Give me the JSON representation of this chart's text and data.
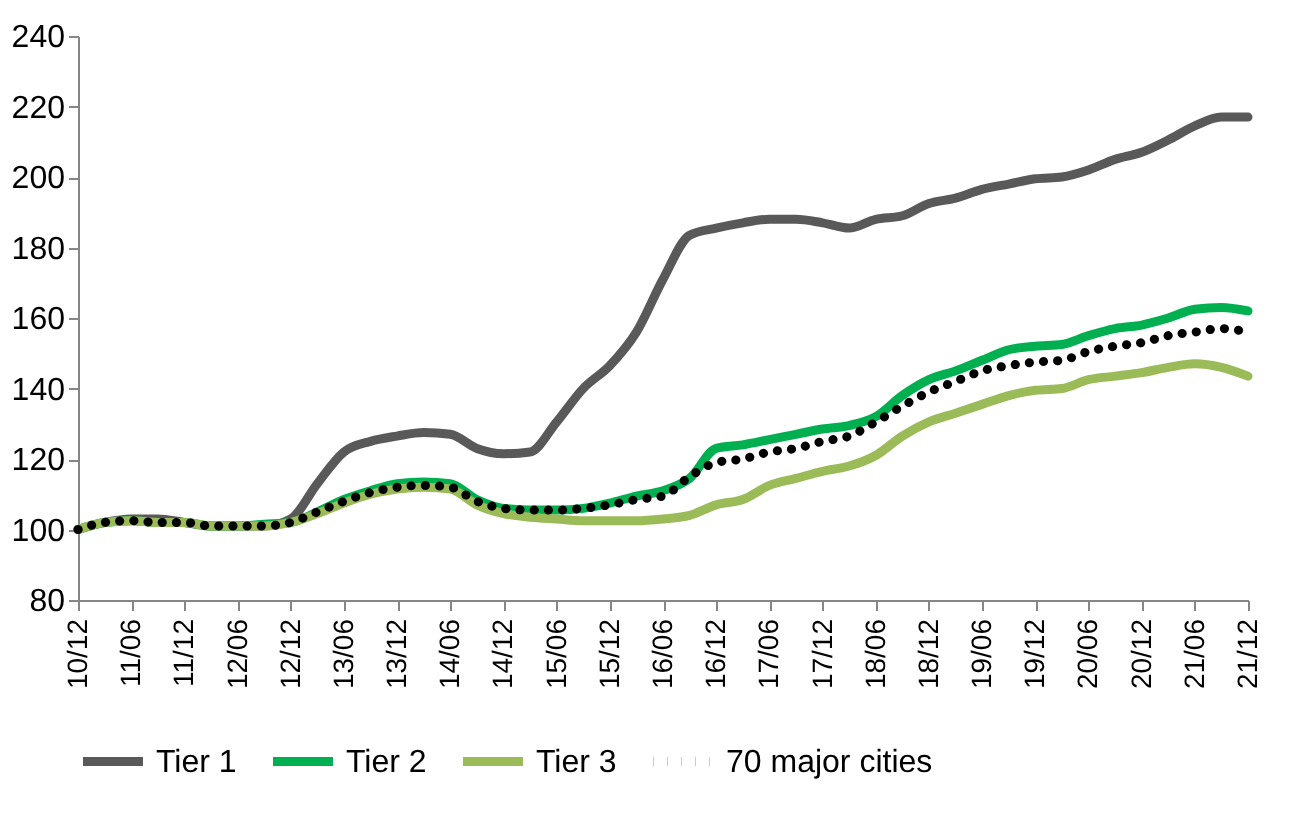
{
  "chart_data": {
    "type": "line",
    "categories": [
      "10/12",
      null,
      "11/06",
      null,
      "11/12",
      null,
      "12/06",
      null,
      "12/12",
      null,
      "13/06",
      null,
      "13/12",
      null,
      "14/06",
      null,
      "14/12",
      null,
      "15/06",
      null,
      "15/12",
      null,
      "16/06",
      null,
      "16/12",
      null,
      "17/06",
      null,
      "17/12",
      null,
      "18/06",
      null,
      "18/12",
      null,
      "19/06",
      null,
      "19/12",
      null,
      "20/06",
      null,
      "20/12",
      null,
      "21/06",
      null,
      "21/12"
    ],
    "series": [
      {
        "name": "Tier 1",
        "color": "#595959",
        "line_style": "solid",
        "values": [
          100,
          102,
          103,
          103,
          102,
          101,
          101,
          101,
          103,
          113,
          122,
          125,
          126.5,
          127.5,
          127,
          123,
          121.5,
          122,
          130.5,
          140,
          146.5,
          156,
          171,
          183.5,
          185.5,
          187,
          188,
          188,
          187,
          185.5,
          188,
          189,
          192.5,
          194,
          196.5,
          198,
          199.5,
          200,
          202,
          205,
          207,
          210.5,
          214.5,
          217,
          217
        ]
      },
      {
        "name": "Tier 2",
        "color": "#00b050",
        "line_style": "solid",
        "values": [
          100,
          102,
          102.5,
          102,
          102,
          101,
          101,
          101.5,
          102,
          105,
          108.5,
          111,
          113,
          113.5,
          113,
          108.5,
          106,
          105.5,
          105.5,
          106,
          107.5,
          109.5,
          111,
          114.5,
          123,
          124,
          125.5,
          127,
          128.5,
          129.5,
          132,
          138,
          142.5,
          145,
          148,
          151,
          152,
          152.5,
          155,
          157,
          158,
          160,
          162.5,
          163,
          162
        ]
      },
      {
        "name": "Tier 3",
        "color": "#9bbb59",
        "line_style": "solid",
        "values": [
          100,
          102,
          102.5,
          102,
          102,
          101,
          101,
          101,
          102,
          104.5,
          107.5,
          110,
          111.5,
          112,
          111.5,
          107,
          104.5,
          103.5,
          103,
          102.5,
          102.5,
          102.5,
          103,
          104,
          107,
          108.5,
          112.5,
          114.5,
          116.5,
          118,
          121,
          126.5,
          130.5,
          133,
          135.5,
          138,
          139.5,
          140,
          142.5,
          143.5,
          144.5,
          146,
          147,
          146,
          143.5
        ]
      },
      {
        "name": "70 major cities",
        "color": "#000000",
        "line_style": "dotted",
        "values": [
          100,
          102,
          102.5,
          102,
          102,
          101,
          101,
          101,
          102,
          105,
          108,
          110.5,
          112,
          112.5,
          112,
          108,
          106,
          105.5,
          105.5,
          106,
          107,
          108.5,
          109.5,
          115,
          119,
          120,
          122,
          123,
          125,
          126.5,
          130.5,
          135,
          139,
          142,
          145,
          146.5,
          147.5,
          148,
          150.5,
          152,
          153,
          155,
          156,
          157,
          156
        ]
      }
    ],
    "ylim": [
      80,
      240
    ],
    "yticks": [
      80,
      100,
      120,
      140,
      160,
      180,
      200,
      220,
      240
    ],
    "grid": false,
    "legend": "bottom"
  }
}
